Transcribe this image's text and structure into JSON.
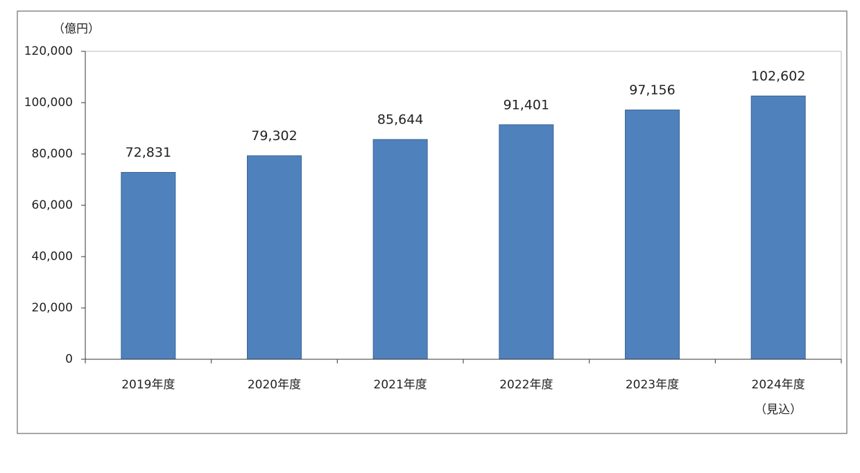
{
  "chart_data": {
    "type": "bar",
    "y_label": "（億円）",
    "categories": [
      "2019年度",
      "2020年度",
      "2021年度",
      "2022年度",
      "2023年度",
      "2024年度\n（見込）"
    ],
    "values": [
      72831,
      79302,
      85644,
      91401,
      97156,
      102602
    ],
    "value_labels": [
      "72,831",
      "79,302",
      "85,644",
      "91,401",
      "97,156",
      "102,602"
    ],
    "color": "#4f81bd",
    "ylim": [
      0,
      120000
    ],
    "yticks": [
      0,
      {
        "value": 20000,
        "label": "20,000"
      },
      {
        "value": 40000,
        "label": "40,000"
      },
      {
        "value": 60000,
        "label": "60,000"
      },
      {
        "value": 80000,
        "label": "80,000"
      },
      {
        "value": 100000,
        "label": "100,000"
      },
      {
        "value": 120000,
        "label": "120,000"
      }
    ],
    "grid": false
  }
}
